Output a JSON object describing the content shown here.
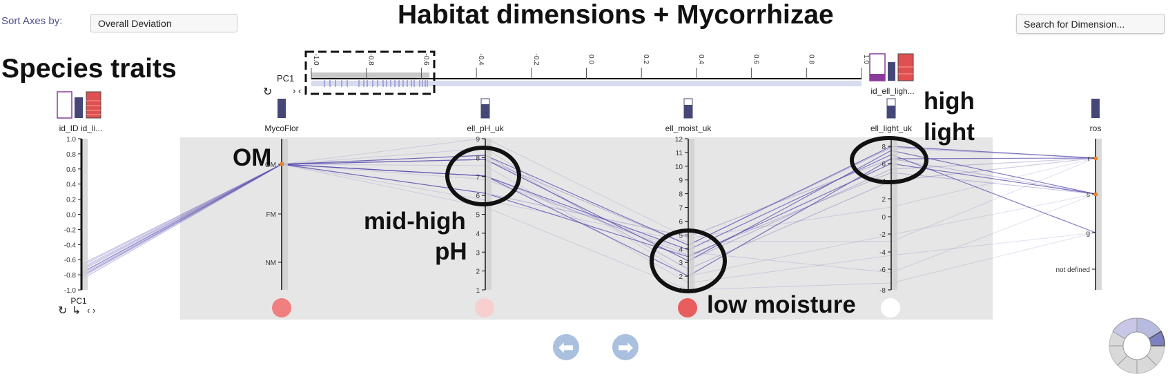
{
  "header": {
    "sort_label": "Sort Axes by:",
    "sort_value": "Overall Deviation",
    "title": "Habitat dimensions + Mycorrhizae",
    "search_placeholder": "Search for Dimension..."
  },
  "annotations": {
    "species_traits": "Species traits",
    "om": "OM",
    "mid_high": "mid-high",
    "ph": "pH",
    "low_moisture": "low moisture",
    "high": "high",
    "light": "light"
  },
  "pc1_slider": {
    "label": "PC1",
    "ticks": [
      "-1.0",
      "-0.8",
      "-0.6",
      "-0.4",
      "-0.2",
      "0.0",
      "0.2",
      "0.4",
      "0.6",
      "0.8",
      "1.0"
    ],
    "selection_range": [
      -1.0,
      -0.55
    ],
    "right_label": "id_ell_ligh..."
  },
  "axes": {
    "pc1": {
      "header_label": "id_ID  id_li...",
      "bottom_label": "PC1",
      "ticks": [
        "1.0",
        "0.8",
        "0.6",
        "0.4",
        "0.2",
        "0.0",
        "-0.2",
        "-0.4",
        "-0.6",
        "-0.8",
        "-1.0"
      ]
    },
    "myco": {
      "label": "MycoFlor",
      "ticks": [
        "OM",
        "FM",
        "NM"
      ]
    },
    "ph": {
      "label": "ell_pH_uk",
      "ticks": [
        "9",
        "8",
        "7",
        "6",
        "5",
        "4",
        "3",
        "2",
        "1"
      ]
    },
    "moist": {
      "label": "ell_moist_uk",
      "ticks": [
        "12",
        "11",
        "10",
        "9",
        "8",
        "7",
        "6",
        "5",
        "4",
        "3",
        "2",
        "1"
      ]
    },
    "light": {
      "label": "ell_light_uk",
      "ticks": [
        "8",
        "6",
        "4",
        "2",
        "0",
        "-2",
        "-4",
        "-6",
        "-8"
      ]
    },
    "ros": {
      "label": "ros",
      "ticks": [
        "r",
        "s",
        "g",
        "not defined"
      ]
    }
  },
  "deviation_circles": {
    "colors": [
      "#f08080",
      "#f8cfcf",
      "#e85d5d",
      "#ffffff"
    ]
  },
  "colors": {
    "line": "#5a4fb0",
    "axis_highlight": "#e8842c",
    "bar": "#454877",
    "purple": "#6b2d8b",
    "red": "#e05050"
  }
}
